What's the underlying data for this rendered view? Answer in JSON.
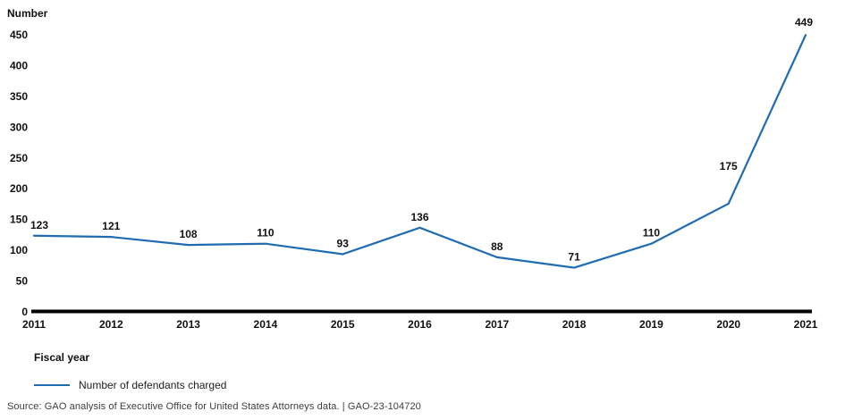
{
  "title": "Number",
  "xaxis_title": "Fiscal year",
  "legend": {
    "label": "Number of defendants charged"
  },
  "source": "Source: GAO analysis of Executive Office for United States Attorneys data.  |  GAO-23-104720",
  "colors": {
    "line": "#1f6cb2",
    "axis": "#000000",
    "text": "#111111",
    "source_text": "#3d3d3d"
  },
  "chart_data": {
    "type": "line",
    "title": "Number",
    "xlabel": "Fiscal year",
    "ylabel": "Number",
    "x": [
      2011,
      2012,
      2013,
      2014,
      2015,
      2016,
      2017,
      2018,
      2019,
      2020,
      2021
    ],
    "series": [
      {
        "name": "Number of defendants charged",
        "values": [
          123,
          121,
          108,
          110,
          93,
          136,
          88,
          71,
          110,
          175,
          449
        ]
      }
    ],
    "ylim": [
      0,
      450
    ],
    "ytick_step": 50,
    "grid": false,
    "data_labels": true,
    "legend_position": "bottom-left"
  }
}
